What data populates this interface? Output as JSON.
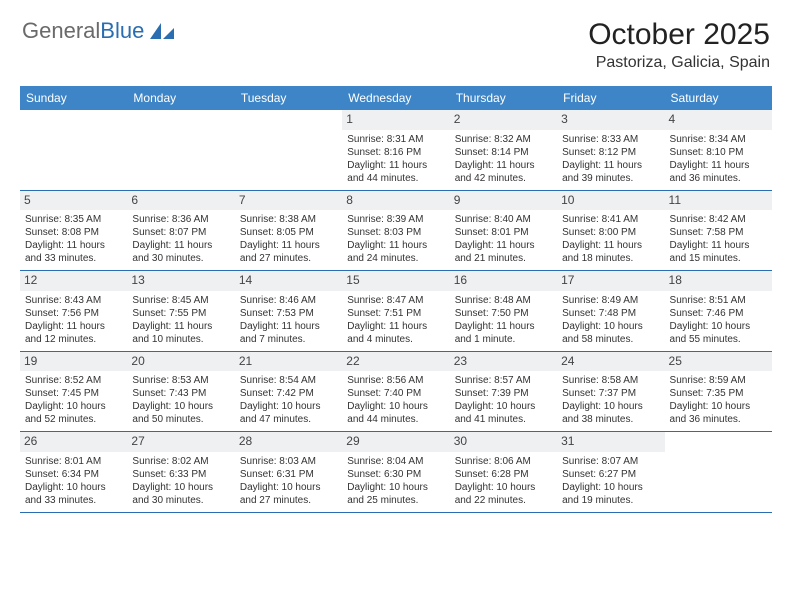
{
  "logo": {
    "part1": "General",
    "part2": "Blue"
  },
  "colors": {
    "header_bg": "#3d85c6",
    "rule": "#2a6db0",
    "daynum_bg": "#eef0f2",
    "logo_grey": "#6a6a6a",
    "logo_blue": "#2a6db0"
  },
  "title": "October 2025",
  "location": "Pastoriza, Galicia, Spain",
  "day_names": [
    "Sunday",
    "Monday",
    "Tuesday",
    "Wednesday",
    "Thursday",
    "Friday",
    "Saturday"
  ],
  "weeks": [
    [
      {
        "day": "",
        "sunrise": "",
        "sunset": "",
        "daylight1": "",
        "daylight2": ""
      },
      {
        "day": "",
        "sunrise": "",
        "sunset": "",
        "daylight1": "",
        "daylight2": ""
      },
      {
        "day": "",
        "sunrise": "",
        "sunset": "",
        "daylight1": "",
        "daylight2": ""
      },
      {
        "day": "1",
        "sunrise": "Sunrise: 8:31 AM",
        "sunset": "Sunset: 8:16 PM",
        "daylight1": "Daylight: 11 hours",
        "daylight2": "and 44 minutes."
      },
      {
        "day": "2",
        "sunrise": "Sunrise: 8:32 AM",
        "sunset": "Sunset: 8:14 PM",
        "daylight1": "Daylight: 11 hours",
        "daylight2": "and 42 minutes."
      },
      {
        "day": "3",
        "sunrise": "Sunrise: 8:33 AM",
        "sunset": "Sunset: 8:12 PM",
        "daylight1": "Daylight: 11 hours",
        "daylight2": "and 39 minutes."
      },
      {
        "day": "4",
        "sunrise": "Sunrise: 8:34 AM",
        "sunset": "Sunset: 8:10 PM",
        "daylight1": "Daylight: 11 hours",
        "daylight2": "and 36 minutes."
      }
    ],
    [
      {
        "day": "5",
        "sunrise": "Sunrise: 8:35 AM",
        "sunset": "Sunset: 8:08 PM",
        "daylight1": "Daylight: 11 hours",
        "daylight2": "and 33 minutes."
      },
      {
        "day": "6",
        "sunrise": "Sunrise: 8:36 AM",
        "sunset": "Sunset: 8:07 PM",
        "daylight1": "Daylight: 11 hours",
        "daylight2": "and 30 minutes."
      },
      {
        "day": "7",
        "sunrise": "Sunrise: 8:38 AM",
        "sunset": "Sunset: 8:05 PM",
        "daylight1": "Daylight: 11 hours",
        "daylight2": "and 27 minutes."
      },
      {
        "day": "8",
        "sunrise": "Sunrise: 8:39 AM",
        "sunset": "Sunset: 8:03 PM",
        "daylight1": "Daylight: 11 hours",
        "daylight2": "and 24 minutes."
      },
      {
        "day": "9",
        "sunrise": "Sunrise: 8:40 AM",
        "sunset": "Sunset: 8:01 PM",
        "daylight1": "Daylight: 11 hours",
        "daylight2": "and 21 minutes."
      },
      {
        "day": "10",
        "sunrise": "Sunrise: 8:41 AM",
        "sunset": "Sunset: 8:00 PM",
        "daylight1": "Daylight: 11 hours",
        "daylight2": "and 18 minutes."
      },
      {
        "day": "11",
        "sunrise": "Sunrise: 8:42 AM",
        "sunset": "Sunset: 7:58 PM",
        "daylight1": "Daylight: 11 hours",
        "daylight2": "and 15 minutes."
      }
    ],
    [
      {
        "day": "12",
        "sunrise": "Sunrise: 8:43 AM",
        "sunset": "Sunset: 7:56 PM",
        "daylight1": "Daylight: 11 hours",
        "daylight2": "and 12 minutes."
      },
      {
        "day": "13",
        "sunrise": "Sunrise: 8:45 AM",
        "sunset": "Sunset: 7:55 PM",
        "daylight1": "Daylight: 11 hours",
        "daylight2": "and 10 minutes."
      },
      {
        "day": "14",
        "sunrise": "Sunrise: 8:46 AM",
        "sunset": "Sunset: 7:53 PM",
        "daylight1": "Daylight: 11 hours",
        "daylight2": "and 7 minutes."
      },
      {
        "day": "15",
        "sunrise": "Sunrise: 8:47 AM",
        "sunset": "Sunset: 7:51 PM",
        "daylight1": "Daylight: 11 hours",
        "daylight2": "and 4 minutes."
      },
      {
        "day": "16",
        "sunrise": "Sunrise: 8:48 AM",
        "sunset": "Sunset: 7:50 PM",
        "daylight1": "Daylight: 11 hours",
        "daylight2": "and 1 minute."
      },
      {
        "day": "17",
        "sunrise": "Sunrise: 8:49 AM",
        "sunset": "Sunset: 7:48 PM",
        "daylight1": "Daylight: 10 hours",
        "daylight2": "and 58 minutes."
      },
      {
        "day": "18",
        "sunrise": "Sunrise: 8:51 AM",
        "sunset": "Sunset: 7:46 PM",
        "daylight1": "Daylight: 10 hours",
        "daylight2": "and 55 minutes."
      }
    ],
    [
      {
        "day": "19",
        "sunrise": "Sunrise: 8:52 AM",
        "sunset": "Sunset: 7:45 PM",
        "daylight1": "Daylight: 10 hours",
        "daylight2": "and 52 minutes."
      },
      {
        "day": "20",
        "sunrise": "Sunrise: 8:53 AM",
        "sunset": "Sunset: 7:43 PM",
        "daylight1": "Daylight: 10 hours",
        "daylight2": "and 50 minutes."
      },
      {
        "day": "21",
        "sunrise": "Sunrise: 8:54 AM",
        "sunset": "Sunset: 7:42 PM",
        "daylight1": "Daylight: 10 hours",
        "daylight2": "and 47 minutes."
      },
      {
        "day": "22",
        "sunrise": "Sunrise: 8:56 AM",
        "sunset": "Sunset: 7:40 PM",
        "daylight1": "Daylight: 10 hours",
        "daylight2": "and 44 minutes."
      },
      {
        "day": "23",
        "sunrise": "Sunrise: 8:57 AM",
        "sunset": "Sunset: 7:39 PM",
        "daylight1": "Daylight: 10 hours",
        "daylight2": "and 41 minutes."
      },
      {
        "day": "24",
        "sunrise": "Sunrise: 8:58 AM",
        "sunset": "Sunset: 7:37 PM",
        "daylight1": "Daylight: 10 hours",
        "daylight2": "and 38 minutes."
      },
      {
        "day": "25",
        "sunrise": "Sunrise: 8:59 AM",
        "sunset": "Sunset: 7:35 PM",
        "daylight1": "Daylight: 10 hours",
        "daylight2": "and 36 minutes."
      }
    ],
    [
      {
        "day": "26",
        "sunrise": "Sunrise: 8:01 AM",
        "sunset": "Sunset: 6:34 PM",
        "daylight1": "Daylight: 10 hours",
        "daylight2": "and 33 minutes."
      },
      {
        "day": "27",
        "sunrise": "Sunrise: 8:02 AM",
        "sunset": "Sunset: 6:33 PM",
        "daylight1": "Daylight: 10 hours",
        "daylight2": "and 30 minutes."
      },
      {
        "day": "28",
        "sunrise": "Sunrise: 8:03 AM",
        "sunset": "Sunset: 6:31 PM",
        "daylight1": "Daylight: 10 hours",
        "daylight2": "and 27 minutes."
      },
      {
        "day": "29",
        "sunrise": "Sunrise: 8:04 AM",
        "sunset": "Sunset: 6:30 PM",
        "daylight1": "Daylight: 10 hours",
        "daylight2": "and 25 minutes."
      },
      {
        "day": "30",
        "sunrise": "Sunrise: 8:06 AM",
        "sunset": "Sunset: 6:28 PM",
        "daylight1": "Daylight: 10 hours",
        "daylight2": "and 22 minutes."
      },
      {
        "day": "31",
        "sunrise": "Sunrise: 8:07 AM",
        "sunset": "Sunset: 6:27 PM",
        "daylight1": "Daylight: 10 hours",
        "daylight2": "and 19 minutes."
      },
      {
        "day": "",
        "sunrise": "",
        "sunset": "",
        "daylight1": "",
        "daylight2": ""
      }
    ]
  ]
}
